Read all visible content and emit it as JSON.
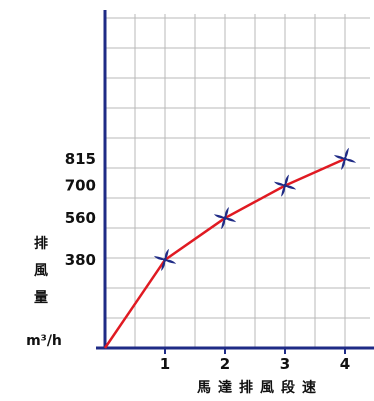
{
  "chart_data": {
    "type": "line",
    "x": [
      0,
      1,
      2,
      3,
      4
    ],
    "values": [
      0,
      380,
      560,
      700,
      815
    ],
    "x_ticks": [
      "1",
      "2",
      "3",
      "4"
    ],
    "y_ticks": [
      380,
      560,
      700,
      815
    ],
    "xlabel": "馬達排風段速",
    "ylabel": "排風量",
    "y_unit": "m³/h",
    "xlim": [
      0,
      4.5
    ],
    "ylim": [
      0,
      1120
    ],
    "grid": true,
    "line_color": "#e01a22",
    "marker": "fan-icon",
    "marker_color": "#1f2b86",
    "axis_color": "#1f2b86",
    "grid_color": "#b8b8b8"
  }
}
